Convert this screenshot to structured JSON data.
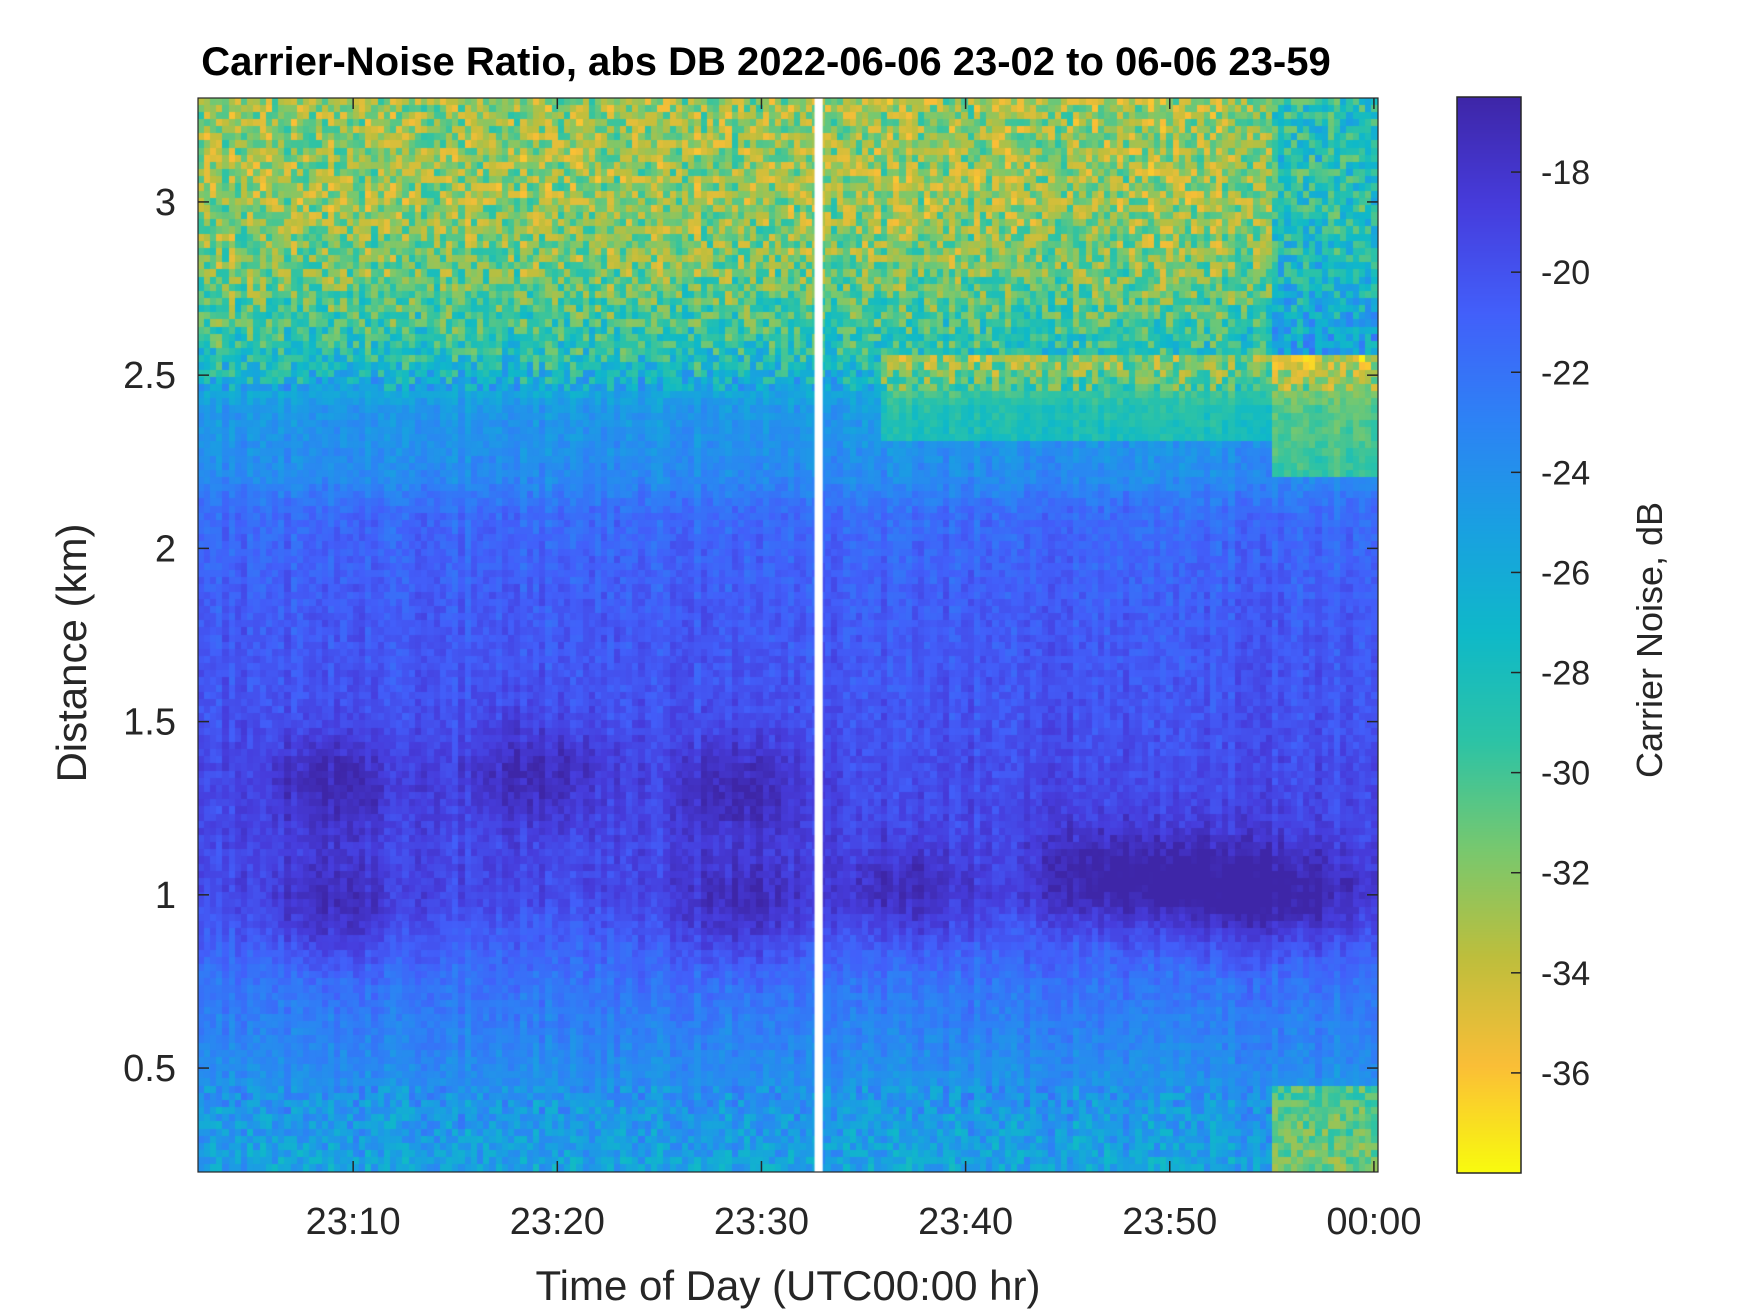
{
  "chart_data": {
    "type": "heatmap",
    "title": "Carrier-Noise Ratio, abs DB 2022-06-06 23-02 to 06-06 23-59",
    "xlabel": "Time of Day (UTC00:00 hr)",
    "ylabel": "Distance (km)",
    "colorbar_label": "Carrier Noise, dB",
    "x_ticks": [
      "23:10",
      "23:20",
      "23:30",
      "23:40",
      "23:50",
      "00:00"
    ],
    "x_tick_minutes": [
      10,
      20,
      30,
      40,
      50,
      60
    ],
    "xlim_minutes": [
      2.4,
      60.2
    ],
    "y_ticks": [
      "0.5",
      "1",
      "1.5",
      "2",
      "2.5",
      "3"
    ],
    "y_tick_values": [
      0.5,
      1,
      1.5,
      2,
      2.5,
      3
    ],
    "ylim": [
      0.2,
      3.3
    ],
    "clim": [
      -38,
      -16.5
    ],
    "cbar_ticks": [
      "-18",
      "-20",
      "-22",
      "-24",
      "-26",
      "-28",
      "-30",
      "-32",
      "-34",
      "-36"
    ],
    "cbar_tick_values": [
      -18,
      -20,
      -22,
      -24,
      -26,
      -28,
      -30,
      -32,
      -34,
      -36
    ],
    "colormap": "parula",
    "data_gap_minutes": [
      32.6,
      33.0
    ],
    "regions": [
      {
        "name": "",
        "description_hidden": true
      }
    ],
    "profile_dB": {
      "distance_km": [
        0.2,
        0.45,
        0.75,
        0.9,
        1.0,
        1.2,
        1.35,
        1.5,
        1.8,
        2.1,
        2.2,
        2.4,
        2.55,
        2.8,
        3.0,
        3.3
      ],
      "value": [
        -25.5,
        -24,
        -22,
        -20.5,
        -19.5,
        -19.5,
        -19.5,
        -20,
        -20.5,
        -21.5,
        -23.5,
        -24.5,
        -28.5,
        -31.5,
        -32.5,
        -32.5
      ]
    }
  }
}
